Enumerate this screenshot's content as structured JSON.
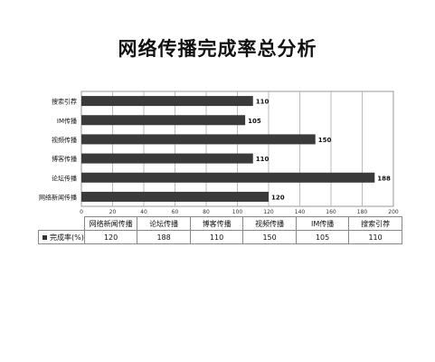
{
  "chart_data": {
    "type": "bar",
    "orientation": "horizontal",
    "title": "网络传播完成率总分析",
    "categories": [
      "搜索引荐",
      "IM传播",
      "视频传播",
      "博客传播",
      "论坛传播",
      "网络新闻传播"
    ],
    "values": [
      110,
      105,
      150,
      110,
      188,
      120
    ],
    "xlim": [
      0,
      200
    ],
    "xticks": [
      0,
      20,
      40,
      60,
      80,
      100,
      120,
      140,
      160,
      180,
      200
    ],
    "grid": true,
    "bar_color": "#3a3a3a"
  },
  "table": {
    "row_label": "完成率(%)",
    "columns": [
      "网络新闻传播",
      "论坛传播",
      "博客传播",
      "视频传播",
      "IM传播",
      "搜索引荐"
    ],
    "values": [
      "120",
      "188",
      "110",
      "150",
      "105",
      "110"
    ]
  }
}
